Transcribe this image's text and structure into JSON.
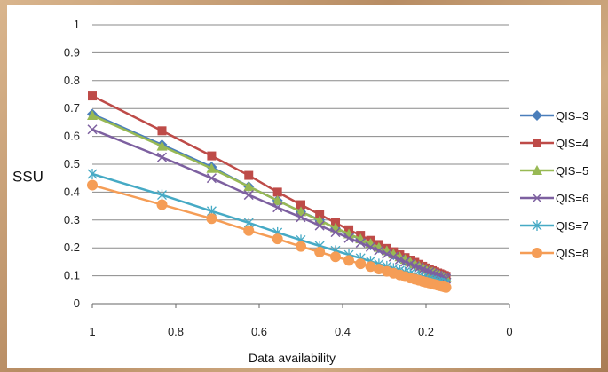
{
  "chart_data": {
    "type": "line",
    "xlabel": "Data availability",
    "ylabel": "SSU",
    "x_reversed": true,
    "xlim": [
      0,
      1
    ],
    "ylim": [
      0,
      1
    ],
    "x_ticks": [
      "1",
      "0.8",
      "0.6",
      "0.4",
      "0.2",
      "0"
    ],
    "y_ticks": [
      "0",
      "0.1",
      "0.2",
      "0.3",
      "0.4",
      "0.5",
      "0.6",
      "0.7",
      "0.8",
      "0.9",
      "1"
    ],
    "grid": "horizontal",
    "legend_position": "right",
    "x": [
      1,
      0.833,
      0.714,
      0.625,
      0.556,
      0.5,
      0.455,
      0.417,
      0.385,
      0.357,
      0.333,
      0.313,
      0.294,
      0.278,
      0.263,
      0.25,
      0.238,
      0.227,
      0.217,
      0.208,
      0.2,
      0.192,
      0.185,
      0.179,
      0.172,
      0.167,
      0.161,
      0.156,
      0.152
    ],
    "series": [
      {
        "name": "QIS=3",
        "color": "#4a7ebb",
        "marker": "diamond",
        "values": [
          0.68,
          0.57,
          0.49,
          0.42,
          0.37,
          0.33,
          0.3,
          0.27,
          0.25,
          0.23,
          0.21,
          0.2,
          0.19,
          0.175,
          0.165,
          0.155,
          0.148,
          0.14,
          0.133,
          0.127,
          0.121,
          0.116,
          0.111,
          0.107,
          0.103,
          0.099,
          0.096,
          0.093,
          0.09
        ]
      },
      {
        "name": "QIS=4",
        "color": "#be4b48",
        "marker": "square",
        "values": [
          0.745,
          0.62,
          0.53,
          0.46,
          0.4,
          0.355,
          0.32,
          0.29,
          0.265,
          0.245,
          0.227,
          0.212,
          0.198,
          0.186,
          0.175,
          0.165,
          0.156,
          0.148,
          0.141,
          0.134,
          0.128,
          0.123,
          0.118,
          0.114,
          0.11,
          0.107,
          0.104,
          0.101,
          0.098
        ]
      },
      {
        "name": "QIS=5",
        "color": "#98b954",
        "marker": "triangle",
        "values": [
          0.675,
          0.565,
          0.485,
          0.42,
          0.37,
          0.33,
          0.298,
          0.272,
          0.25,
          0.232,
          0.216,
          0.202,
          0.19,
          0.178,
          0.168,
          0.159,
          0.15,
          0.143,
          0.136,
          0.13,
          0.124,
          0.119,
          0.114,
          0.11,
          0.106,
          0.102,
          0.099,
          0.096,
          0.093
        ]
      },
      {
        "name": "QIS=6",
        "color": "#7d60a0",
        "marker": "x",
        "values": [
          0.625,
          0.525,
          0.45,
          0.39,
          0.345,
          0.31,
          0.28,
          0.256,
          0.235,
          0.218,
          0.203,
          0.19,
          0.178,
          0.168,
          0.158,
          0.15,
          0.142,
          0.135,
          0.129,
          0.123,
          0.118,
          0.113,
          0.109,
          0.105,
          0.101,
          0.098,
          0.095,
          0.092,
          0.089
        ]
      },
      {
        "name": "QIS=7",
        "color": "#46aac5",
        "marker": "star",
        "values": [
          0.465,
          0.39,
          0.332,
          0.29,
          0.255,
          0.228,
          0.207,
          0.19,
          0.175,
          0.163,
          0.152,
          0.142,
          0.134,
          0.126,
          0.119,
          0.113,
          0.108,
          0.103,
          0.098,
          0.094,
          0.09,
          0.087,
          0.084,
          0.081,
          0.078,
          0.076,
          0.074,
          0.072,
          0.07
        ]
      },
      {
        "name": "QIS=8",
        "color": "#f59d56",
        "marker": "circle",
        "values": [
          0.425,
          0.355,
          0.305,
          0.262,
          0.232,
          0.205,
          0.185,
          0.168,
          0.155,
          0.143,
          0.133,
          0.124,
          0.116,
          0.109,
          0.103,
          0.097,
          0.092,
          0.088,
          0.084,
          0.08,
          0.077,
          0.074,
          0.071,
          0.069,
          0.066,
          0.064,
          0.062,
          0.06,
          0.058
        ]
      }
    ]
  }
}
